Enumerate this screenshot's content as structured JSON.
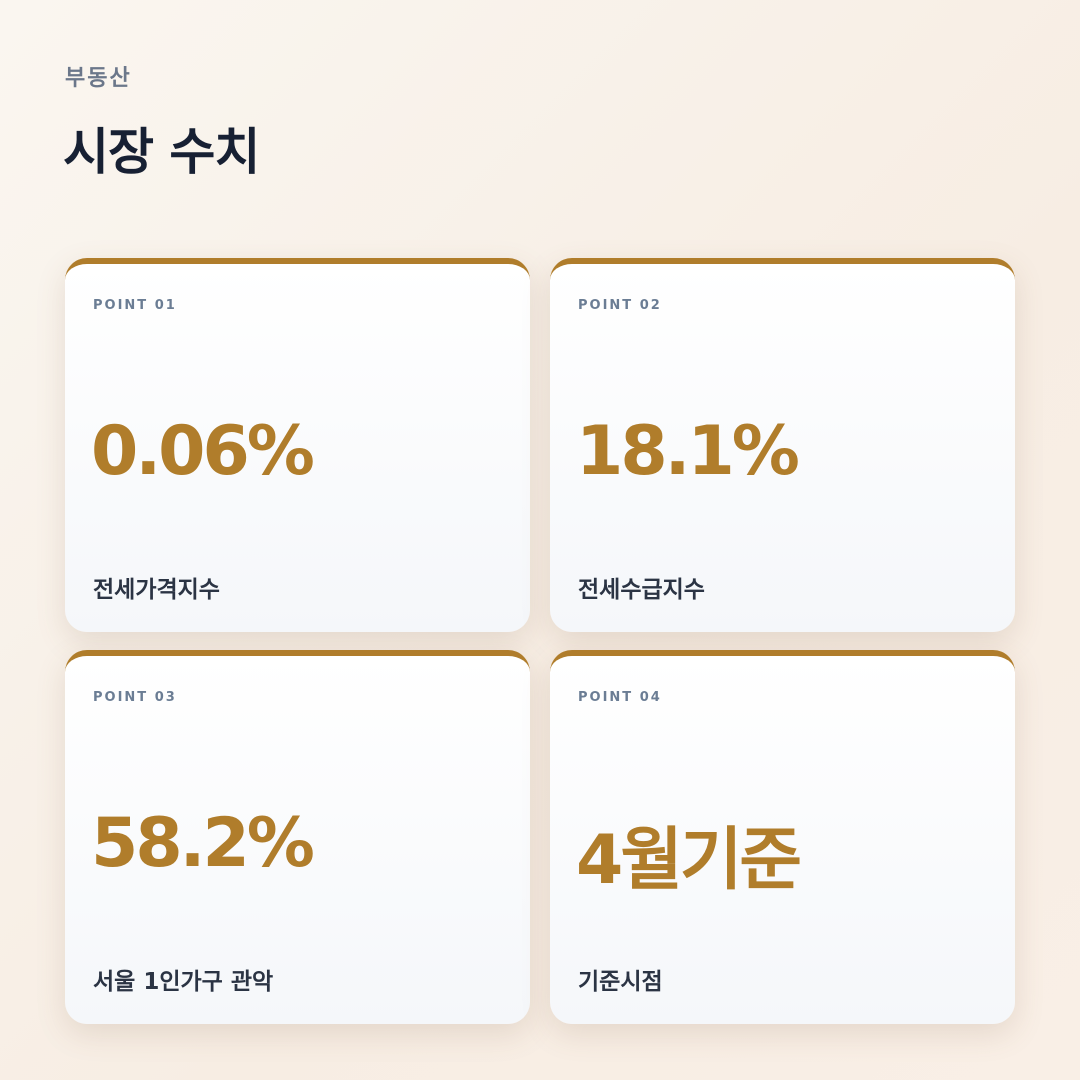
{
  "header": {
    "category": "부동산",
    "title": "시장 수치"
  },
  "accent_color": "#b07d2b",
  "cards": [
    {
      "label": "POINT 01",
      "value": "0.06%",
      "description": "전세가격지수"
    },
    {
      "label": "POINT 02",
      "value": "18.1%",
      "description": "전세수급지수"
    },
    {
      "label": "POINT 03",
      "value": "58.2%",
      "description": "서울 1인가구 관악"
    },
    {
      "label": "POINT 04",
      "value": "4월기준",
      "description": "기준시점"
    }
  ]
}
